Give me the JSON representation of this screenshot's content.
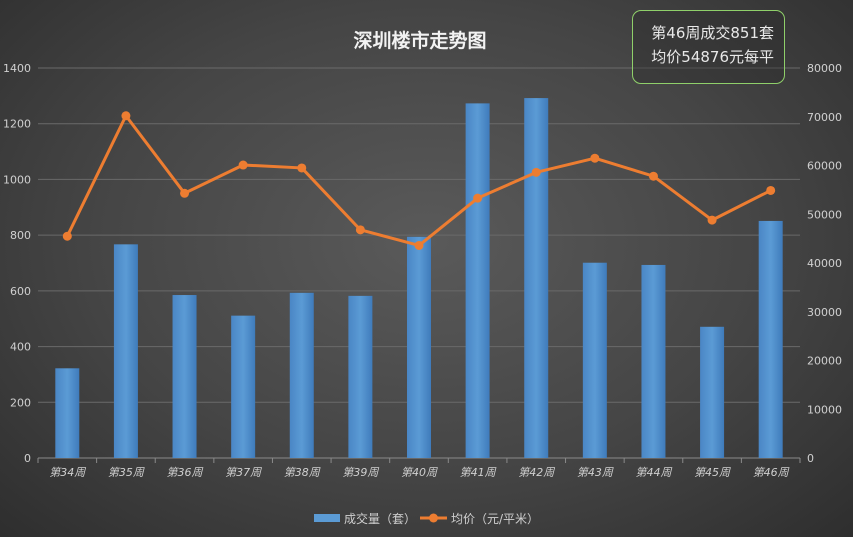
{
  "colors": {
    "bar": "#5b9bd5",
    "line": "#ed7d31",
    "grid": "#6a6a6a",
    "text": "#d0d0d0",
    "box_border": "#8fd06a"
  },
  "info": {
    "line1": "第46周成交851套",
    "line2": "均价54876元每平"
  },
  "chart_data": {
    "type": "bar",
    "title": "深圳楼市走势图",
    "categories": [
      "第34周",
      "第35周",
      "第36周",
      "第37周",
      "第38周",
      "第39周",
      "第40周",
      "第41周",
      "第42周",
      "第43周",
      "第44周",
      "第45周",
      "第46周"
    ],
    "ylim": [
      0,
      1400
    ],
    "yticks": [
      "0",
      "200",
      "400",
      "600",
      "800",
      "1000",
      "1200",
      "1400"
    ],
    "y2lim": [
      0,
      80000
    ],
    "y2ticks": [
      "0",
      "10000",
      "20000",
      "30000",
      "40000",
      "50000",
      "60000",
      "70000",
      "80000"
    ],
    "grid": true,
    "legend_position": "bottom",
    "series": [
      {
        "name": "成交量（套）",
        "type": "bar",
        "axis": "left",
        "values": [
          322,
          767,
          585,
          511,
          593,
          582,
          794,
          1273,
          1292,
          701,
          693,
          471,
          851
        ]
      },
      {
        "name": "均价（元/平米）",
        "type": "line",
        "axis": "right",
        "values": [
          45500,
          70200,
          54300,
          60100,
          59500,
          46800,
          43600,
          53300,
          58600,
          61500,
          57800,
          48800,
          54876
        ]
      }
    ]
  }
}
